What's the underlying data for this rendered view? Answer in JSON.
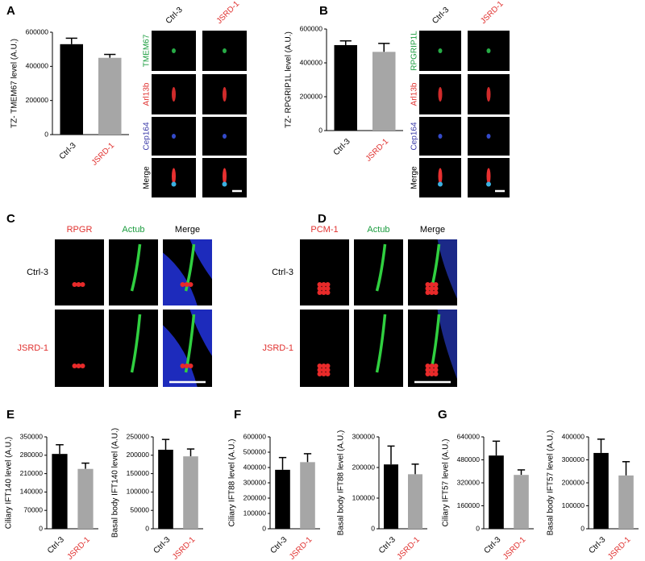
{
  "panel_letters": [
    "A",
    "B",
    "C",
    "D",
    "E",
    "F",
    "G"
  ],
  "chart_data": [
    {
      "type": "bar",
      "ylabel": "TZ- TMEM67  level (A.U.)",
      "categories": [
        "Ctrl-3",
        "JSRD-1"
      ],
      "category_colors": [
        "#000000",
        "#e0312f"
      ],
      "values": [
        530000,
        450000
      ],
      "errors": [
        35000,
        20000
      ],
      "colors": [
        "#000000",
        "#a6a6a6"
      ],
      "ylim": [
        0,
        600000
      ],
      "yticks": [
        0,
        200000,
        400000,
        600000
      ]
    },
    {
      "type": "bar",
      "ylabel": "TZ- RPGRIP1L level (A.U.)",
      "categories": [
        "Ctrl-3",
        "JSRD-1"
      ],
      "category_colors": [
        "#000000",
        "#e0312f"
      ],
      "values": [
        505000,
        465000
      ],
      "errors": [
        25000,
        50000
      ],
      "colors": [
        "#000000",
        "#a6a6a6"
      ],
      "ylim": [
        0,
        600000
      ],
      "yticks": [
        0,
        200000,
        400000,
        600000
      ]
    },
    {
      "type": "bar",
      "ylabel": "Ciliary IFT140 level (A.U.)",
      "categories": [
        "Ctrl-3",
        "JSRD-1"
      ],
      "category_colors": [
        "#000000",
        "#e0312f"
      ],
      "values": [
        285000,
        228000
      ],
      "errors": [
        35000,
        22000
      ],
      "colors": [
        "#000000",
        "#a6a6a6"
      ],
      "ylim": [
        0,
        350000
      ],
      "yticks": [
        0,
        70000,
        140000,
        210000,
        280000,
        350000
      ]
    },
    {
      "type": "bar",
      "ylabel": "Basal body IFT140 level (A.U.)",
      "categories": [
        "Ctrl-3",
        "JSRD-1"
      ],
      "category_colors": [
        "#000000",
        "#e0312f"
      ],
      "values": [
        215000,
        197000
      ],
      "errors": [
        28000,
        20000
      ],
      "colors": [
        "#000000",
        "#a6a6a6"
      ],
      "ylim": [
        0,
        250000
      ],
      "yticks": [
        0,
        50000,
        100000,
        150000,
        200000,
        250000
      ]
    },
    {
      "type": "bar",
      "ylabel": "Ciliary IFT88 level (A.U.)",
      "categories": [
        "Ctrl-3",
        "JSRD-1"
      ],
      "category_colors": [
        "#000000",
        "#e0312f"
      ],
      "values": [
        385000,
        435000
      ],
      "errors": [
        80000,
        55000
      ],
      "colors": [
        "#000000",
        "#a6a6a6"
      ],
      "ylim": [
        0,
        600000
      ],
      "yticks": [
        0,
        100000,
        200000,
        300000,
        400000,
        500000,
        600000
      ]
    },
    {
      "type": "bar",
      "ylabel": "Basal body IFT88 level (A.U.)",
      "categories": [
        "Ctrl-3",
        "JSRD-1"
      ],
      "category_colors": [
        "#000000",
        "#e0312f"
      ],
      "values": [
        210000,
        178000
      ],
      "errors": [
        60000,
        33000
      ],
      "colors": [
        "#000000",
        "#a6a6a6"
      ],
      "ylim": [
        0,
        300000
      ],
      "yticks": [
        0,
        100000,
        200000,
        300000
      ]
    },
    {
      "type": "bar",
      "ylabel": "Ciliary IFT57 level (A.U.)",
      "categories": [
        "Ctrl-3",
        "JSRD-1"
      ],
      "category_colors": [
        "#000000",
        "#e0312f"
      ],
      "values": [
        510000,
        375000
      ],
      "errors": [
        100000,
        35000
      ],
      "colors": [
        "#000000",
        "#a6a6a6"
      ],
      "ylim": [
        0,
        640000
      ],
      "yticks": [
        0,
        160000,
        320000,
        480000,
        640000
      ]
    },
    {
      "type": "bar",
      "ylabel": "Basal body IFT57 level (A.U.)",
      "categories": [
        "Ctrl-3",
        "JSRD-1"
      ],
      "category_colors": [
        "#000000",
        "#e0312f"
      ],
      "values": [
        330000,
        232000
      ],
      "errors": [
        60000,
        60000
      ],
      "colors": [
        "#000000",
        "#a6a6a6"
      ],
      "ylim": [
        0,
        400000
      ],
      "yticks": [
        0,
        100000,
        200000,
        300000,
        400000
      ]
    }
  ],
  "image_panels": [
    {
      "columns": [
        {
          "text": "Ctrl-3",
          "color": "#000000"
        },
        {
          "text": "JSRD-1",
          "color": "#e0312f"
        }
      ],
      "rows": [
        {
          "text": "TMEM67",
          "color": "#1a9c3e"
        },
        {
          "text": "Arl13b",
          "color": "#e0312f"
        },
        {
          "text": "Cep164",
          "color": "#3a3aa8"
        },
        {
          "text": "Merge",
          "color": "#000000"
        }
      ]
    },
    {
      "columns": [
        {
          "text": "Ctrl-3",
          "color": "#000000"
        },
        {
          "text": "JSRD-1",
          "color": "#e0312f"
        }
      ],
      "rows": [
        {
          "text": "RPGRIP1L",
          "color": "#1a9c3e"
        },
        {
          "text": "Arl13b",
          "color": "#e0312f"
        },
        {
          "text": "Cep164",
          "color": "#3a3aa8"
        },
        {
          "text": "Merge",
          "color": "#000000"
        }
      ]
    },
    {
      "columns": [
        {
          "text": "RPGR",
          "color": "#e0312f"
        },
        {
          "text": "Actub",
          "color": "#1a9c3e"
        },
        {
          "text": "Merge",
          "color": "#000000"
        }
      ],
      "rows": [
        {
          "text": "Ctrl-3",
          "color": "#000000"
        },
        {
          "text": "JSRD-1",
          "color": "#e0312f"
        }
      ]
    },
    {
      "columns": [
        {
          "text": "PCM-1",
          "color": "#e0312f"
        },
        {
          "text": "Actub",
          "color": "#1a9c3e"
        },
        {
          "text": "Merge",
          "color": "#000000"
        }
      ],
      "rows": [
        {
          "text": "Ctrl-3",
          "color": "#000000"
        },
        {
          "text": "JSRD-1",
          "color": "#e0312f"
        }
      ]
    }
  ]
}
